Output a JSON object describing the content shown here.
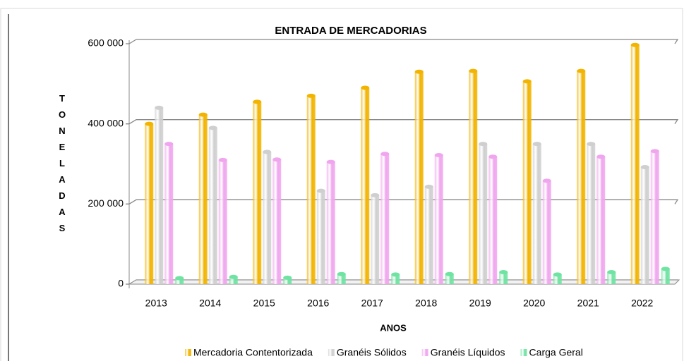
{
  "chart_data": {
    "type": "bar",
    "title": "ENTRADA DE MERCADORIAS",
    "x_label": "ANOS",
    "y_label": "TONELADAS",
    "categories": [
      "2013",
      "2014",
      "2015",
      "2016",
      "2017",
      "2018",
      "2019",
      "2020",
      "2021",
      "2022"
    ],
    "series": [
      {
        "name": "Mercadoria Contentorizada",
        "color": "#f2b400",
        "values": [
          400000,
          423000,
          455000,
          470000,
          490000,
          530000,
          532000,
          506000,
          532000,
          597000
        ]
      },
      {
        "name": "Granéis Sólidos",
        "color": "#cfcfcf",
        "values": [
          440000,
          390000,
          330000,
          233000,
          222000,
          243000,
          350000,
          350000,
          350000,
          292000
        ]
      },
      {
        "name": "Granéis Líquidos",
        "color": "#f0a6ee",
        "values": [
          350000,
          310000,
          311000,
          305000,
          325000,
          322000,
          318000,
          258000,
          318000,
          332000
        ]
      },
      {
        "name": "Carga Geral",
        "color": "#6fe3a2",
        "values": [
          15000,
          18000,
          16000,
          25000,
          24000,
          25000,
          30000,
          24000,
          30000,
          38000
        ]
      }
    ],
    "ylim": [
      0,
      600000
    ],
    "yticks": [
      0,
      {
        "value": 200000,
        "label": "200 000"
      },
      {
        "value": 400000,
        "label": "400 000"
      },
      {
        "value": 600000,
        "label": "600 000"
      }
    ],
    "grid": true,
    "legend": "bottom"
  }
}
